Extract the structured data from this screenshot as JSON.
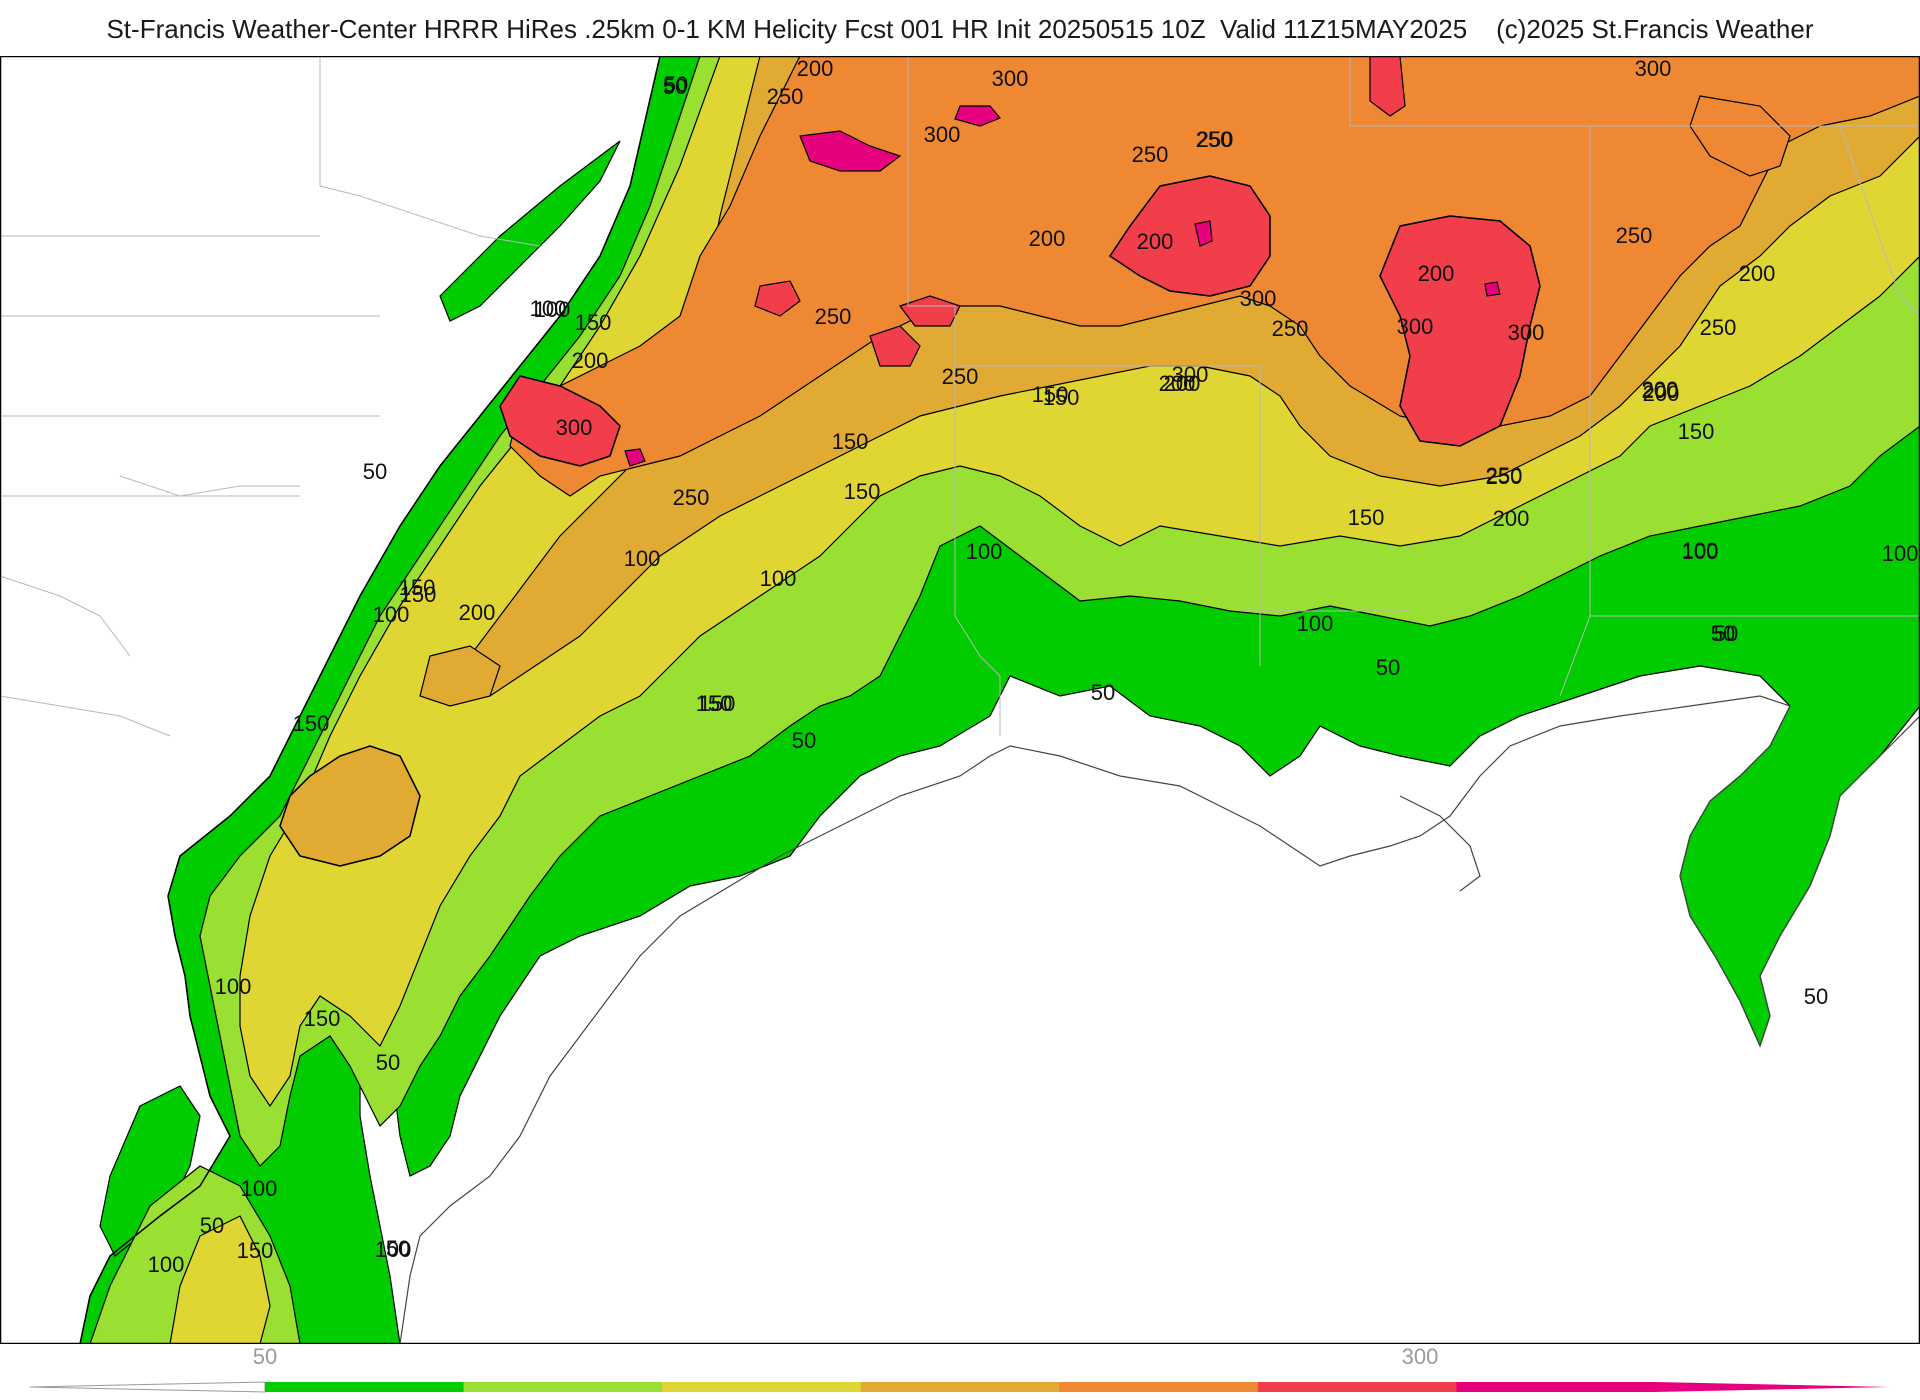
{
  "header": {
    "title": "St-Francis Weather-Center HRRR HiRes .25km 0-1 KM Helicity Fcst 001 HR Init 20250515 10Z  Valid 11Z15MAY2025    (c)2025 St.Francis Weather"
  },
  "map": {
    "colors": {
      "c50": "#00cc00",
      "c100": "#99e033",
      "c150": "#e0d633",
      "c200": "#e0aa33",
      "c250": "#ee8833",
      "c300": "#f23d4a",
      "c350": "#e6007e",
      "outline": "#000000",
      "border": "#b8b8b8"
    },
    "contour_labels": [
      "50",
      "200",
      "250",
      "300",
      "300",
      "250",
      "200",
      "250",
      "300",
      "250",
      "200",
      "100",
      "150",
      "200",
      "250",
      "250",
      "200",
      "300",
      "250",
      "150",
      "200",
      "50",
      "300",
      "200",
      "250",
      "300",
      "300",
      "300",
      "250",
      "250",
      "200",
      "150",
      "200",
      "150",
      "250",
      "150",
      "250",
      "200",
      "150",
      "150",
      "200",
      "100",
      "100",
      "100",
      "100",
      "100",
      "150",
      "150",
      "150",
      "100",
      "50",
      "50",
      "50",
      "50",
      "50",
      "150",
      "100",
      "150",
      "200",
      "200",
      "50",
      "100",
      "150",
      "100",
      "100",
      "100",
      "50",
      "50",
      "50",
      "150",
      "100",
      "50",
      "100"
    ]
  },
  "colorbar": {
    "ticks": [
      "50",
      "300"
    ],
    "colors": [
      "#00cc00",
      "#99e033",
      "#e0d633",
      "#e0aa33",
      "#ee8833",
      "#f23d4a",
      "#e6007e"
    ]
  }
}
